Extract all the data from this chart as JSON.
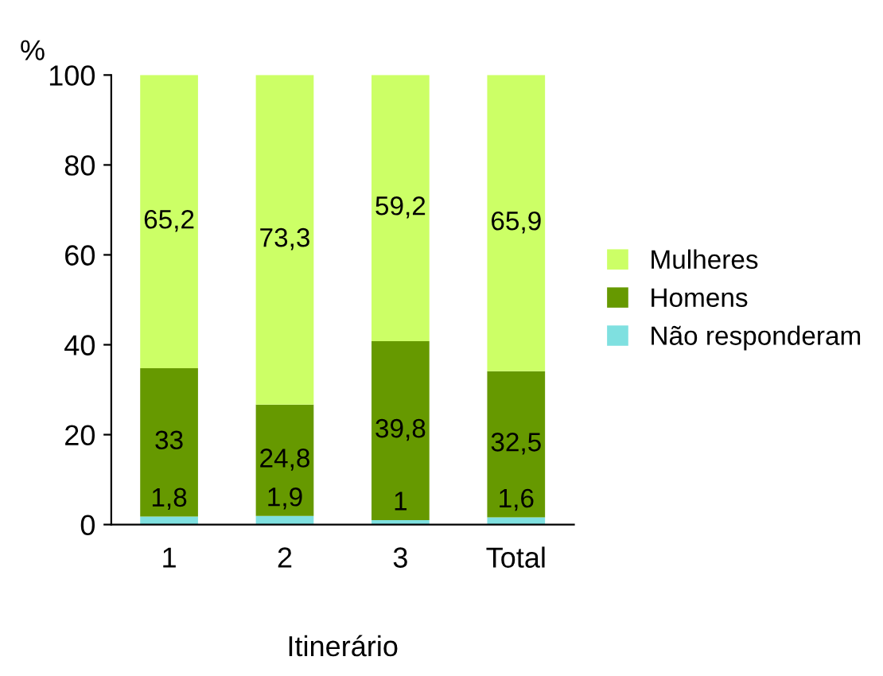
{
  "chart_data": {
    "type": "bar",
    "stacked": true,
    "xlabel": "Itinerário",
    "ylabel": "%",
    "categories": [
      "1",
      "2",
      "3",
      "Total"
    ],
    "series": [
      {
        "name": "Não responderam",
        "color": "#7fe0e0",
        "values": [
          1.8,
          1.9,
          1,
          1.6
        ],
        "value_labels": [
          "1,8",
          "1,9",
          "1",
          "1,6"
        ]
      },
      {
        "name": "Homens",
        "color": "#669900",
        "values": [
          33,
          24.8,
          39.8,
          32.5
        ],
        "value_labels": [
          "33",
          "24,8",
          "39,8",
          "32,5"
        ]
      },
      {
        "name": "Mulheres",
        "color": "#ccff66",
        "values": [
          65.2,
          73.3,
          59.2,
          65.9
        ],
        "value_labels": [
          "65,2",
          "73,3",
          "59,2",
          "65,9"
        ]
      }
    ],
    "ylim": [
      0,
      100
    ],
    "yticks": [
      0,
      20,
      40,
      60,
      80,
      100
    ],
    "legend": "right",
    "grid": false
  }
}
